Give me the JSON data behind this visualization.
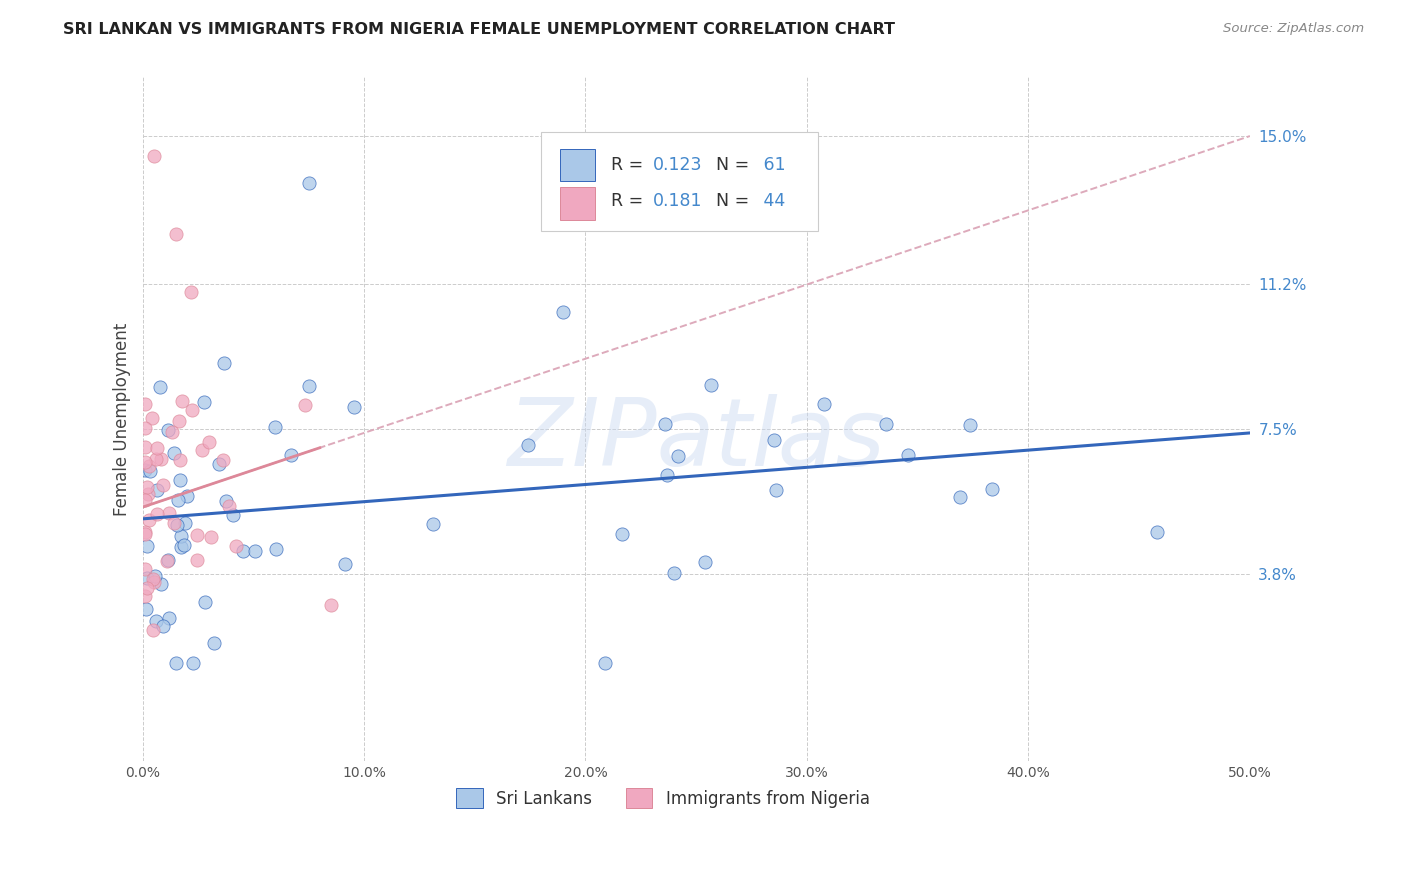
{
  "title": "SRI LANKAN VS IMMIGRANTS FROM NIGERIA FEMALE UNEMPLOYMENT CORRELATION CHART",
  "source": "Source: ZipAtlas.com",
  "ylabel": "Female Unemployment",
  "ytick_values": [
    3.8,
    7.5,
    11.2,
    15.0
  ],
  "ytick_labels": [
    "3.8%",
    "7.5%",
    "11.2%",
    "15.0%"
  ],
  "xlim": [
    0.0,
    50.0
  ],
  "ylim": [
    -1.0,
    16.5
  ],
  "xtick_values": [
    0,
    10,
    20,
    30,
    40,
    50
  ],
  "xtick_labels": [
    "0.0%",
    "10.0%",
    "20.0%",
    "30.0%",
    "40.0%",
    "50.0%"
  ],
  "legend_r1": "0.123",
  "legend_n1": "61",
  "legend_r2": "0.181",
  "legend_n2": "44",
  "watermark": "ZIPatlas",
  "watermark_color": "#c8d8f0",
  "series1_color": "#aac8e8",
  "series2_color": "#f0a8c0",
  "trendline1_color": "#3366bb",
  "trendline2_color": "#dd8899",
  "trendline2_dash_color": "#ddaabb",
  "background_color": "#ffffff",
  "grid_color": "#cccccc",
  "legend_label1": "Sri Lankans",
  "legend_label2": "Immigrants from Nigeria",
  "sl_trend_start_y": 5.2,
  "sl_trend_end_y": 7.4,
  "ng_trend_start_y": 5.5,
  "ng_trend_end_y": 15.0,
  "title_color": "#222222",
  "source_color": "#888888",
  "ytick_color": "#4488cc",
  "xtick_color": "#555555"
}
